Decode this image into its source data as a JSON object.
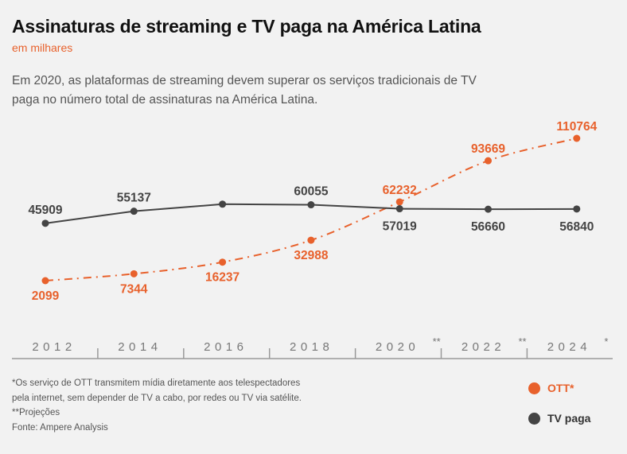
{
  "header": {
    "title": "Assinaturas de streaming e TV paga na América Latina",
    "subtitle": "em milhares",
    "description": "Em 2020, as plataformas de streaming devem superar os serviços tradicionais de TV paga no número total de assinaturas na América Latina."
  },
  "chart_data": {
    "type": "line",
    "categories": [
      "2012",
      "2014",
      "2016",
      "2018",
      "2020",
      "2022",
      "2024"
    ],
    "category_marks": [
      "",
      "",
      "",
      "",
      "**",
      "**",
      "*"
    ],
    "series": [
      {
        "name": "OTT*",
        "color": "#e8612c",
        "style": "dashed",
        "x": [
          "2012",
          "2014",
          "2016",
          "2018",
          "2020",
          "2022",
          "2024"
        ],
        "values": [
          2099,
          7344,
          16237,
          32988,
          62232,
          93669,
          110764
        ],
        "labels": [
          "2099",
          "7344",
          "16237",
          "32988",
          "62232",
          "93669",
          "110764"
        ]
      },
      {
        "name": "TV paga",
        "color": "#444444",
        "style": "solid",
        "x": [
          "2012",
          "2014",
          "2016",
          "2018",
          "2020",
          "2022",
          "2024"
        ],
        "values": [
          45909,
          55137,
          60500,
          60055,
          57019,
          56660,
          56840
        ],
        "labels": [
          "45909",
          "55137",
          "",
          "60055",
          "57019",
          "56660",
          "56840"
        ]
      }
    ],
    "legend_position": "bottom-right",
    "grid": false
  },
  "footnotes": {
    "ott_note_line1": "*Os serviço de OTT transmitem mídia diretamente aos telespectadores",
    "ott_note_line2": "pela internet, sem depender de TV a cabo, por redes ou TV via satélite.",
    "projections_note": "**Projeções",
    "source": "Fonte: Ampere Analysis"
  },
  "legend": {
    "ott_label": "OTT*",
    "tv_label": "TV paga",
    "ott_color": "#e8612c",
    "tv_color": "#444444"
  }
}
